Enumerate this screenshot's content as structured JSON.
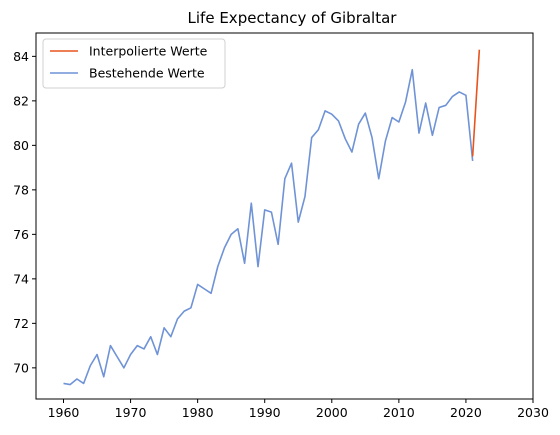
{
  "chart_data": {
    "type": "line",
    "title": "Life Expectancy of Gibraltar",
    "xlabel": "",
    "ylabel": "",
    "xlim": [
      1955.9,
      2030
    ],
    "ylim": [
      68.6,
      85.05
    ],
    "xticks": [
      1960,
      1970,
      1980,
      1990,
      2000,
      2010,
      2020,
      2030
    ],
    "yticks": [
      70,
      72,
      74,
      76,
      78,
      80,
      82,
      84
    ],
    "grid": false,
    "legend_position": "top-left",
    "series": [
      {
        "name": "Interpolierte Werte",
        "color": "#e8541e",
        "x": [
          2021,
          2022
        ],
        "y": [
          79.5,
          84.3
        ]
      },
      {
        "name": "Bestehende Werte",
        "color": "#6f93d6",
        "x": [
          1960,
          1961,
          1962,
          1963,
          1964,
          1965,
          1966,
          1967,
          1968,
          1969,
          1970,
          1971,
          1972,
          1973,
          1974,
          1975,
          1976,
          1977,
          1978,
          1979,
          1980,
          1981,
          1982,
          1983,
          1984,
          1985,
          1986,
          1987,
          1988,
          1989,
          1990,
          1991,
          1992,
          1993,
          1994,
          1995,
          1996,
          1997,
          1998,
          1999,
          2000,
          2001,
          2002,
          2003,
          2004,
          2005,
          2006,
          2007,
          2008,
          2009,
          2010,
          2011,
          2012,
          2013,
          2014,
          2015,
          2016,
          2017,
          2018,
          2019,
          2020,
          2021
        ],
        "y": [
          69.3,
          69.25,
          69.5,
          69.3,
          70.1,
          70.6,
          69.6,
          71.0,
          70.5,
          70.0,
          70.6,
          71.0,
          70.85,
          71.4,
          70.6,
          71.8,
          71.4,
          72.2,
          72.55,
          72.7,
          73.75,
          73.55,
          73.35,
          74.55,
          75.4,
          76.0,
          76.25,
          74.7,
          77.4,
          74.55,
          77.1,
          77.0,
          75.55,
          78.5,
          79.2,
          76.55,
          77.7,
          80.35,
          80.7,
          81.55,
          81.4,
          81.1,
          80.3,
          79.7,
          80.95,
          81.45,
          80.35,
          78.5,
          80.2,
          81.25,
          81.05,
          81.95,
          83.4,
          80.55,
          81.9,
          80.45,
          81.7,
          81.8,
          82.2,
          82.4,
          82.25,
          79.3
        ]
      }
    ]
  }
}
